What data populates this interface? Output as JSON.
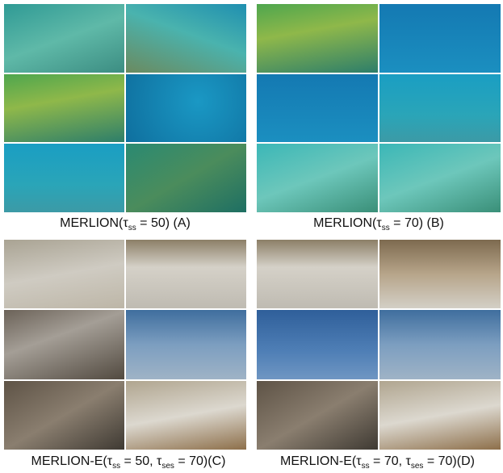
{
  "panels": [
    {
      "caption": [
        "MERLION(τ",
        "ss",
        " = 50) (A)"
      ]
    },
    {
      "caption": [
        "MERLION(τ",
        "ss",
        " = 70) (B)"
      ]
    },
    {
      "caption": [
        "MERLION-E(τ",
        "ss",
        " = 50, τ",
        "ses",
        " = 70)(C)"
      ]
    },
    {
      "caption": [
        "MERLION-E(τ",
        "ss",
        " = 70, τ",
        "ses",
        " = 70)(D)"
      ]
    }
  ]
}
